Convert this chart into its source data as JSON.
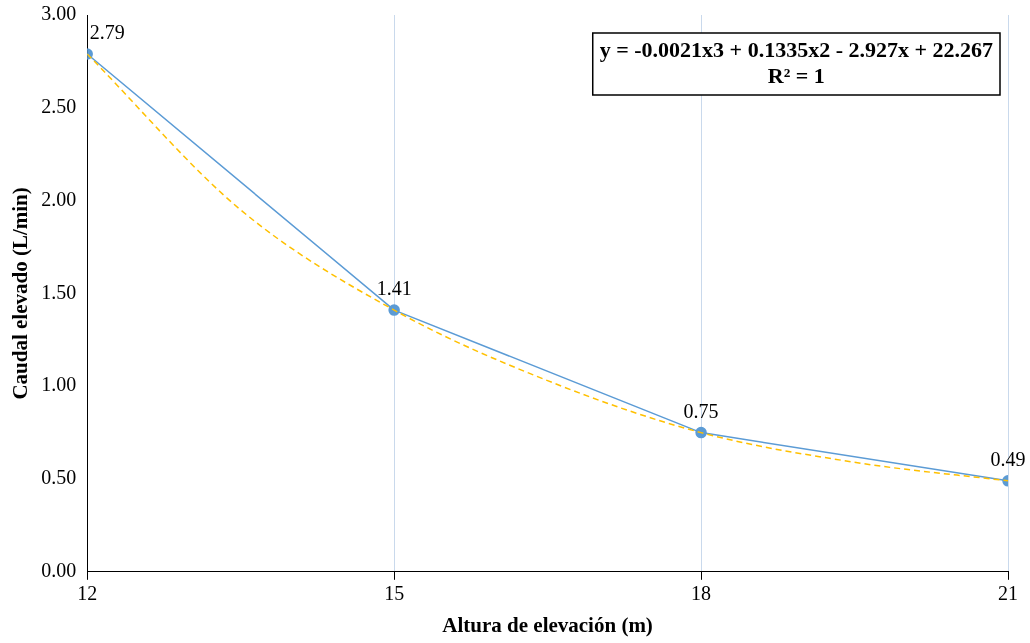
{
  "chart_data": {
    "type": "line",
    "xlabel": "Altura de elevación (m)",
    "ylabel": "Caudal elevado (L/min)",
    "x": [
      12,
      15,
      18,
      21
    ],
    "series": [
      {
        "color": "#5b9bd5",
        "values": [
          2.79,
          1.41,
          0.75,
          0.49
        ],
        "value_labels": [
          "2.79",
          "1.41",
          "0.75",
          "0.49"
        ],
        "marker": "circle",
        "line_style": "solid"
      },
      {
        "type": "line",
        "color": "#ffc000",
        "x": [
          12,
          13.5,
          15,
          16.5,
          18,
          19.5,
          21
        ],
        "values": [
          2.79,
          1.95,
          1.41,
          1.03,
          0.75,
          0.59,
          0.49
        ],
        "marker": "none",
        "line_style": "dashed"
      }
    ],
    "xlim": [
      12,
      21
    ],
    "xticks": [
      12,
      15,
      18,
      21
    ],
    "ylim": [
      0,
      3
    ],
    "yticks": [
      {
        "value": 0,
        "label": "0.00"
      },
      {
        "value": 0.5,
        "label": "0.50"
      },
      {
        "value": 1,
        "label": "1.00"
      },
      {
        "value": 1.5,
        "label": "1.50"
      },
      {
        "value": 2,
        "label": "2.00"
      },
      {
        "value": 2.5,
        "label": "2.50"
      },
      {
        "value": 3,
        "label": "3.00"
      }
    ],
    "grid": "x",
    "legend": false,
    "annotations": [
      "y = -0.0021x3 + 0.1335x2 - 2.927x + 22.267",
      "R² = 1"
    ]
  }
}
